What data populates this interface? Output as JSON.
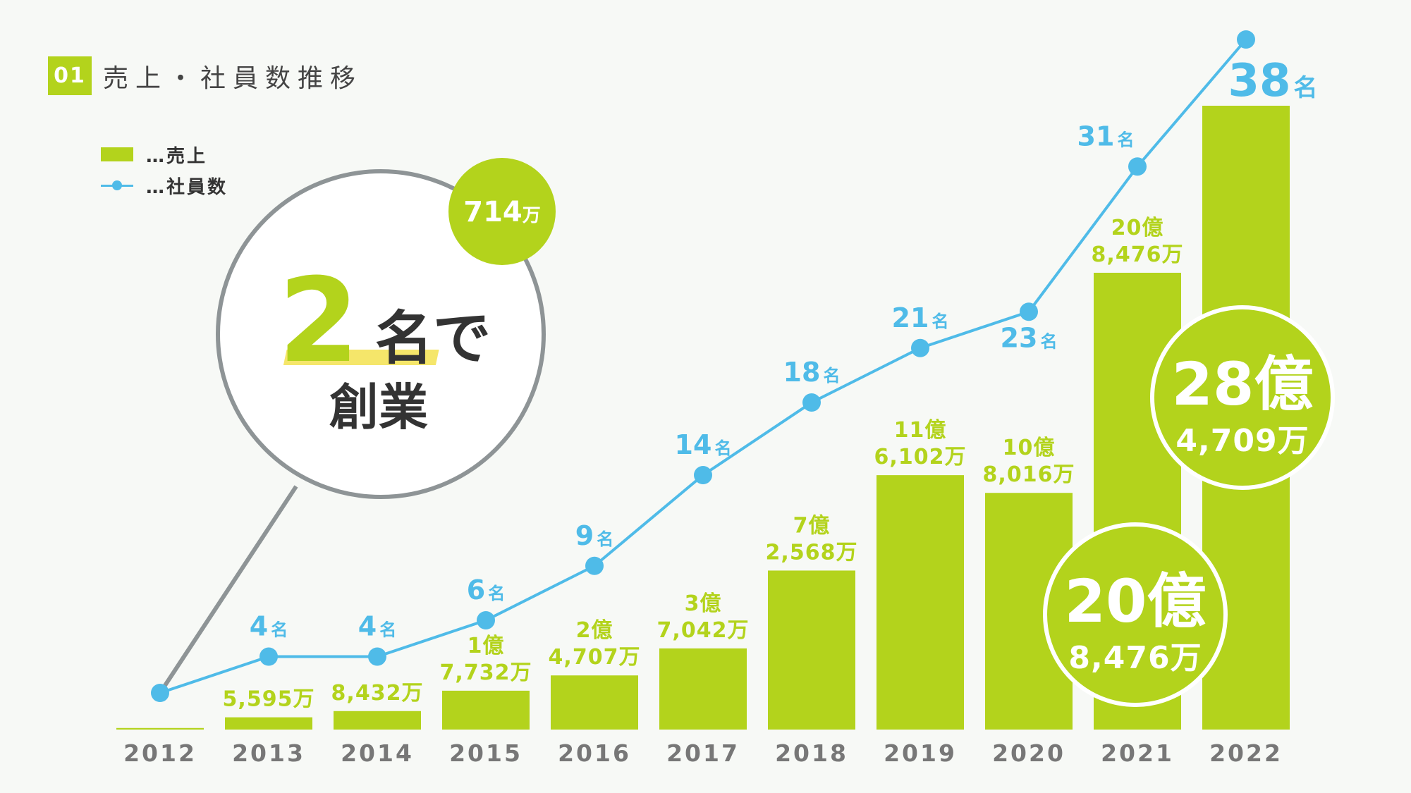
{
  "header": {
    "number": "01",
    "title": "売上・社員数推移"
  },
  "legend": {
    "sales": "…売上",
    "employees": "…社員数"
  },
  "callout": {
    "count": "2",
    "count_suffix": "名で",
    "line2": "創業",
    "badge_value": "714",
    "badge_unit": "万"
  },
  "chart_data": {
    "type": "bar",
    "categories": [
      "2012",
      "2013",
      "2014",
      "2015",
      "2016",
      "2017",
      "2018",
      "2019",
      "2020",
      "2021",
      "2022"
    ],
    "series": [
      {
        "name": "売上",
        "values": [
          714,
          5595,
          8432,
          17732,
          24707,
          37042,
          72568,
          116102,
          108016,
          208476,
          284709
        ],
        "value_unit": "万円",
        "labels": [
          [
            "714万"
          ],
          [
            "5,595万"
          ],
          [
            "8,432万"
          ],
          [
            "1億",
            "7,732万"
          ],
          [
            "2億",
            "4,707万"
          ],
          [
            "3億",
            "7,042万"
          ],
          [
            "7億",
            "2,568万"
          ],
          [
            "11億",
            "6,102万"
          ],
          [
            "10億",
            "8,016万"
          ],
          [
            "20億",
            "8,476万"
          ],
          [
            "28億",
            "4,709万"
          ]
        ]
      },
      {
        "name": "社員数",
        "values": [
          2,
          4,
          4,
          6,
          9,
          14,
          18,
          21,
          23,
          31,
          38
        ],
        "unit": "名"
      }
    ],
    "highlights": [
      {
        "category": "2021",
        "big": "20億",
        "small": "8,476万"
      },
      {
        "category": "2022",
        "big": "28億",
        "small": "4,709万"
      }
    ],
    "colors": {
      "sales": "#b3d31c",
      "employees": "#4fbbe8",
      "circle_outline": "#8e9496",
      "marker": "#f5e66a"
    }
  }
}
